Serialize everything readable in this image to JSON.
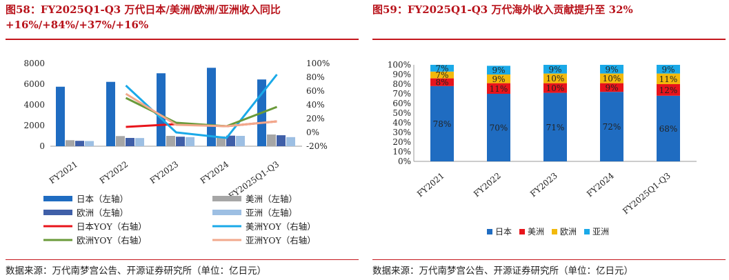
{
  "fig58": {
    "title_line1": "图58：FY2025Q1-Q3 万代日本/美洲/欧洲/亚洲收入同比",
    "title_line2": "+16%/+84%/+37%/+16%",
    "source": "数据来源：万代南梦宫公告、开源证券研究所（单位：亿日元）"
  },
  "fig59": {
    "title": "图59：FY2025Q1-Q3 万代海外收入贡献提升至 32%",
    "source": "数据来源：万代南梦宫公告、开源证券研究所（单位：亿日元）"
  },
  "chart_data": [
    {
      "type": "bar",
      "categories": [
        "FY2021",
        "FY2022",
        "FY2023",
        "FY2024",
        "FY2025Q1-Q3"
      ],
      "left_axis": {
        "ylim": [
          0,
          8000
        ],
        "ticks": [
          "0",
          "2000",
          "4000",
          "6000",
          "8000"
        ]
      },
      "right_axis": {
        "ylim": [
          -20,
          100
        ],
        "ticks": [
          "-20%",
          "0%",
          "20%",
          "40%",
          "60%",
          "80%",
          "100%"
        ]
      },
      "bar_series": [
        {
          "name": "日本（左轴）",
          "color": "#1f6cc1",
          "values": [
            5750,
            6220,
            7050,
            7580,
            6450
          ]
        },
        {
          "name": "美洲（左轴）",
          "color": "#a6a6a6",
          "values": [
            580,
            980,
            1000,
            950,
            1130
          ]
        },
        {
          "name": "欧洲（左轴）",
          "color": "#3f5fa8",
          "values": [
            520,
            800,
            920,
            1020,
            1060
          ]
        },
        {
          "name": "亚洲（左轴）",
          "color": "#9dbfe3",
          "values": [
            500,
            790,
            880,
            1000,
            880
          ]
        }
      ],
      "line_series": [
        {
          "name": "日本YOY（右轴）",
          "color": "#e8141b",
          "values": [
            null,
            8,
            12,
            9,
            16
          ]
        },
        {
          "name": "美洲YOY（右轴）",
          "color": "#1aa9e8",
          "values": [
            null,
            68,
            0,
            -8,
            84
          ]
        },
        {
          "name": "欧洲YOY（右轴）",
          "color": "#6a9a3a",
          "values": [
            null,
            50,
            14,
            9,
            37
          ]
        },
        {
          "name": "亚洲YOY（右轴）",
          "color": "#f2a98c",
          "values": [
            null,
            56,
            11,
            9,
            16
          ]
        }
      ],
      "legend_position": "bottom"
    },
    {
      "type": "bar",
      "stacked": true,
      "categories": [
        "FY2021",
        "FY2022",
        "FY2023",
        "FY2024",
        "FY2025Q1-Q3"
      ],
      "ylim": [
        0,
        100
      ],
      "y_ticks": [
        "0%",
        "10%",
        "20%",
        "30%",
        "40%",
        "50%",
        "60%",
        "70%",
        "80%",
        "90%",
        "100%"
      ],
      "series": [
        {
          "name": "日本",
          "color": "#1f6cc1",
          "values": [
            78,
            70,
            71,
            72,
            68
          ],
          "labels": [
            "78%",
            "70%",
            "71%",
            "72%",
            "68%"
          ]
        },
        {
          "name": "美洲",
          "color": "#e8141b",
          "values": [
            8,
            11,
            10,
            9,
            12
          ],
          "labels": [
            "8%",
            "11%",
            "10%",
            "9%",
            "12%"
          ]
        },
        {
          "name": "欧洲",
          "color": "#f2b90c",
          "values": [
            7,
            9,
            10,
            10,
            11
          ],
          "labels": [
            "7%",
            "9%",
            "10%",
            "10%",
            "11%"
          ]
        },
        {
          "name": "亚洲",
          "color": "#1aa9e8",
          "values": [
            7,
            9,
            9,
            9,
            9
          ],
          "labels": [
            "7%",
            "9%",
            "9%",
            "9%",
            "9%"
          ]
        }
      ],
      "legend_position": "bottom"
    }
  ]
}
